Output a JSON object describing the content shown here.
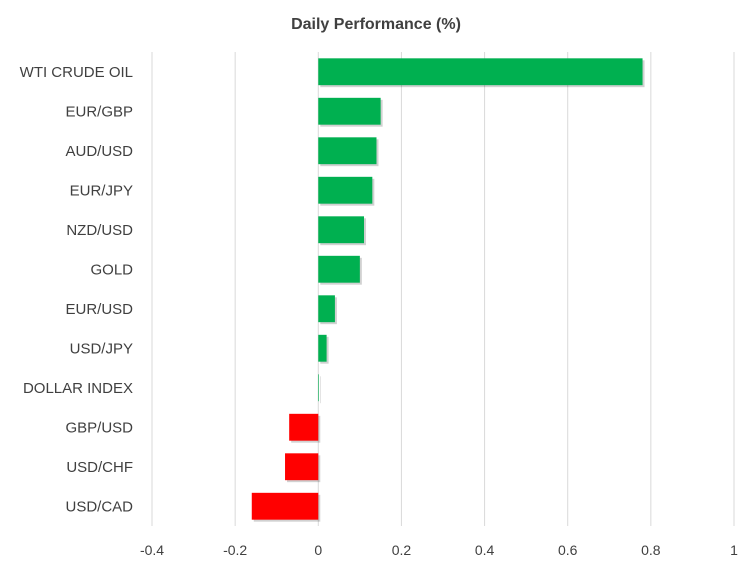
{
  "chart_data": {
    "type": "bar",
    "orientation": "horizontal",
    "title": "Daily Performance  (%)",
    "xlabel": "",
    "ylabel": "",
    "xlim": [
      -0.4,
      1
    ],
    "x_ticks": [
      "-0.4",
      "-0.2",
      "0",
      "0.2",
      "0.4",
      "0.6",
      "0.8",
      "1"
    ],
    "grid": "vertical",
    "legend": "none",
    "categories": [
      "WTI CRUDE OIL",
      "EUR/GBP",
      "AUD/USD",
      "EUR/JPY",
      "NZD/USD",
      "GOLD",
      "EUR/USD",
      "USD/JPY",
      "DOLLAR INDEX",
      "GBP/USD",
      "USD/CHF",
      "USD/CAD"
    ],
    "values": [
      0.78,
      0.15,
      0.14,
      0.13,
      0.11,
      0.1,
      0.04,
      0.02,
      0.0,
      -0.07,
      -0.08,
      -0.16
    ],
    "colors": {
      "positive": "#00b050",
      "negative": "#ff0000",
      "grid": "#d9d9d9",
      "text": "#404040"
    }
  }
}
